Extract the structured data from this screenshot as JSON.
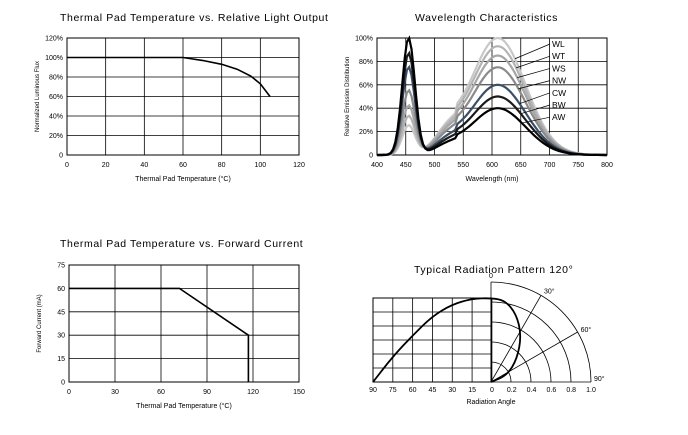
{
  "chart_data": [
    {
      "type": "line",
      "title": "Thermal Pad Temperature vs. Relative Light Output",
      "xlabel": "Thermal Pad Temperature (°C)",
      "ylabel": "Normalized Luminous Flux",
      "xlim": [
        0,
        120
      ],
      "ylim": [
        0,
        120
      ],
      "xticks": [
        0,
        20,
        40,
        60,
        80,
        100,
        120
      ],
      "yticks": [
        "0",
        "20%",
        "40%",
        "60%",
        "80%",
        "100%",
        "120%"
      ],
      "grid": true,
      "series": [
        {
          "x": [
            0,
            20,
            40,
            60,
            70,
            80,
            88,
            95,
            100,
            105
          ],
          "y": [
            100,
            100,
            100,
            100,
            97,
            93,
            88,
            81,
            73,
            60
          ]
        }
      ]
    },
    {
      "type": "line",
      "title": "Wavelength Characteristics",
      "xlabel": "Wavelength (nm)",
      "ylabel": "Relative Emission Distribution",
      "xlim": [
        400,
        800
      ],
      "ylim": [
        0,
        100
      ],
      "xticks": [
        400,
        450,
        500,
        550,
        600,
        650,
        700,
        750,
        800
      ],
      "yticks": [
        "0",
        "20%",
        "40%",
        "60%",
        "80%",
        "100%"
      ],
      "grid": true,
      "legend_position": "right",
      "series": [
        {
          "name": "WL",
          "color": "#c8c8c8",
          "blue": 25,
          "phosphor": 100
        },
        {
          "name": "WT",
          "color": "#b4b4b4",
          "blue": 33,
          "phosphor": 93
        },
        {
          "name": "WS",
          "color": "#a6a6a6",
          "blue": 42,
          "phosphor": 85
        },
        {
          "name": "NW",
          "color": "#8a8a8a",
          "blue": 55,
          "phosphor": 75
        },
        {
          "name": "CW",
          "color": "#3b5068",
          "blue": 75,
          "phosphor": 60
        },
        {
          "name": "BW",
          "color": "#1a1a1a",
          "blue": 87,
          "phosphor": 50
        },
        {
          "name": "AW",
          "color": "#000000",
          "blue": 100,
          "phosphor": 40
        }
      ]
    },
    {
      "type": "line",
      "title": "Thermal Pad Temperature vs. Forward Current",
      "xlabel": "Thermal Pad Temperature (°C)",
      "ylabel": "Forward Current (mA)",
      "xlim": [
        0,
        150
      ],
      "ylim": [
        0,
        75
      ],
      "xticks": [
        0,
        30,
        60,
        90,
        120,
        150
      ],
      "yticks": [
        0,
        15,
        30,
        45,
        60,
        75
      ],
      "grid": true,
      "series": [
        {
          "x": [
            0,
            72,
            117,
            117
          ],
          "y": [
            60,
            60,
            30,
            0
          ]
        }
      ]
    },
    {
      "type": "line",
      "title": "Typical Radiation Pattern   120°",
      "xlabel": "Radiation Angle",
      "xticks": [
        "90",
        "75",
        "60",
        "45",
        "30",
        "15",
        "0",
        "0.2",
        "0.4",
        "0.6",
        "0.8",
        "1.0"
      ],
      "angle_labels": [
        "0",
        "30°",
        "60°",
        "90°"
      ],
      "grid": true,
      "series": [
        {
          "angle_deg": [
            -90,
            -75,
            -60,
            -45,
            -30,
            -15,
            0,
            15,
            30,
            45,
            60,
            75,
            90
          ],
          "intensity": [
            0,
            0.3,
            0.55,
            0.78,
            0.92,
            0.99,
            1.0,
            0.99,
            0.92,
            0.78,
            0.55,
            0.3,
            0
          ]
        }
      ]
    }
  ]
}
